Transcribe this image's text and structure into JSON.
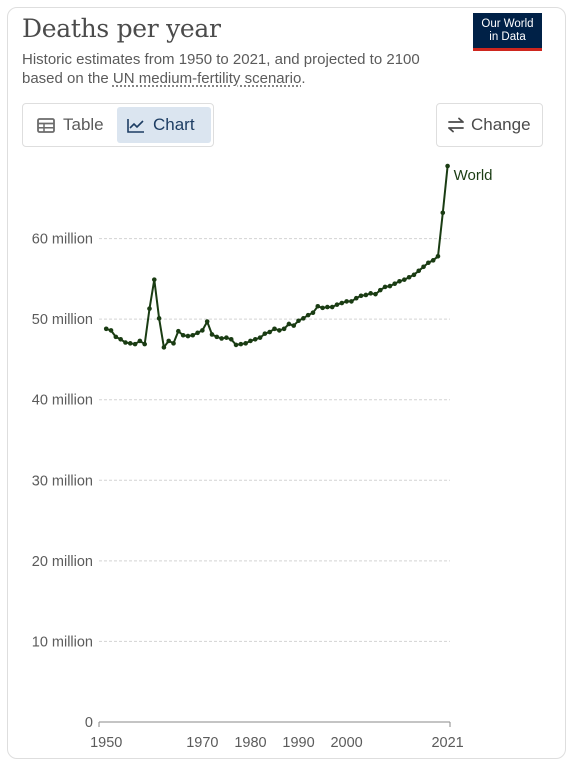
{
  "header": {
    "title": "Deaths per year",
    "subtitle_text": "Historic estimates from 1950 to 2021, and projected to 2100 based on the ",
    "subtitle_link": "UN medium-fertility scenario",
    "subtitle_end": ".",
    "logo_line1": "Our World",
    "logo_line2": "in Data"
  },
  "controls": {
    "tab_table": "Table",
    "tab_chart": "Chart",
    "change_label": "Change",
    "active_tab": "Chart"
  },
  "icons": {
    "table": "table-icon",
    "chart": "line-chart-icon",
    "change": "swap-arrows-icon"
  },
  "colors": {
    "series_line": "#1a3c13",
    "active_tab_bg": "#dbe5f0",
    "gridline": "#d3d3d3",
    "logo_bg": "#002147",
    "logo_accent": "#ce261e"
  },
  "chart_data": {
    "type": "line",
    "title": "Deaths per year",
    "xlabel": "",
    "ylabel": "",
    "ylim": [
      0,
      70000000
    ],
    "y_ticks": [
      0,
      10000000,
      20000000,
      30000000,
      40000000,
      50000000,
      60000000
    ],
    "y_tick_labels": [
      "0",
      "10 million",
      "20 million",
      "30 million",
      "40 million",
      "50 million",
      "60 million"
    ],
    "x_ticks": [
      1950,
      1970,
      1980,
      1990,
      2000,
      2021
    ],
    "x_tick_labels": [
      "1950",
      "1970",
      "1980",
      "1990",
      "2000",
      "2021"
    ],
    "grid": "horizontal-dashed",
    "series": [
      {
        "name": "World",
        "x": [
          1950,
          1951,
          1952,
          1953,
          1954,
          1955,
          1956,
          1957,
          1958,
          1959,
          1960,
          1961,
          1962,
          1963,
          1964,
          1965,
          1966,
          1967,
          1968,
          1969,
          1970,
          1971,
          1972,
          1973,
          1974,
          1975,
          1976,
          1977,
          1978,
          1979,
          1980,
          1981,
          1982,
          1983,
          1984,
          1985,
          1986,
          1987,
          1988,
          1989,
          1990,
          1991,
          1992,
          1993,
          1994,
          1995,
          1996,
          1997,
          1998,
          1999,
          2000,
          2001,
          2002,
          2003,
          2004,
          2005,
          2006,
          2007,
          2008,
          2009,
          2010,
          2011,
          2012,
          2013,
          2014,
          2015,
          2016,
          2017,
          2018,
          2019,
          2020,
          2021
        ],
        "values": [
          48800000,
          48600000,
          47800000,
          47500000,
          47100000,
          47000000,
          46900000,
          47300000,
          46900000,
          51300000,
          54900000,
          50100000,
          46500000,
          47300000,
          47000000,
          48500000,
          48000000,
          47900000,
          48000000,
          48300000,
          48600000,
          49700000,
          48100000,
          47800000,
          47600000,
          47700000,
          47500000,
          46800000,
          46900000,
          47000000,
          47300000,
          47500000,
          47700000,
          48200000,
          48400000,
          48800000,
          48600000,
          48800000,
          49400000,
          49200000,
          49800000,
          50100000,
          50500000,
          50800000,
          51600000,
          51400000,
          51500000,
          51500000,
          51800000,
          52000000,
          52200000,
          52200000,
          52600000,
          52900000,
          53000000,
          53200000,
          53100000,
          53600000,
          54000000,
          54100000,
          54400000,
          54700000,
          54900000,
          55200000,
          55500000,
          56000000,
          56500000,
          57000000,
          57300000,
          57800000,
          63200000,
          69000000
        ]
      }
    ]
  }
}
